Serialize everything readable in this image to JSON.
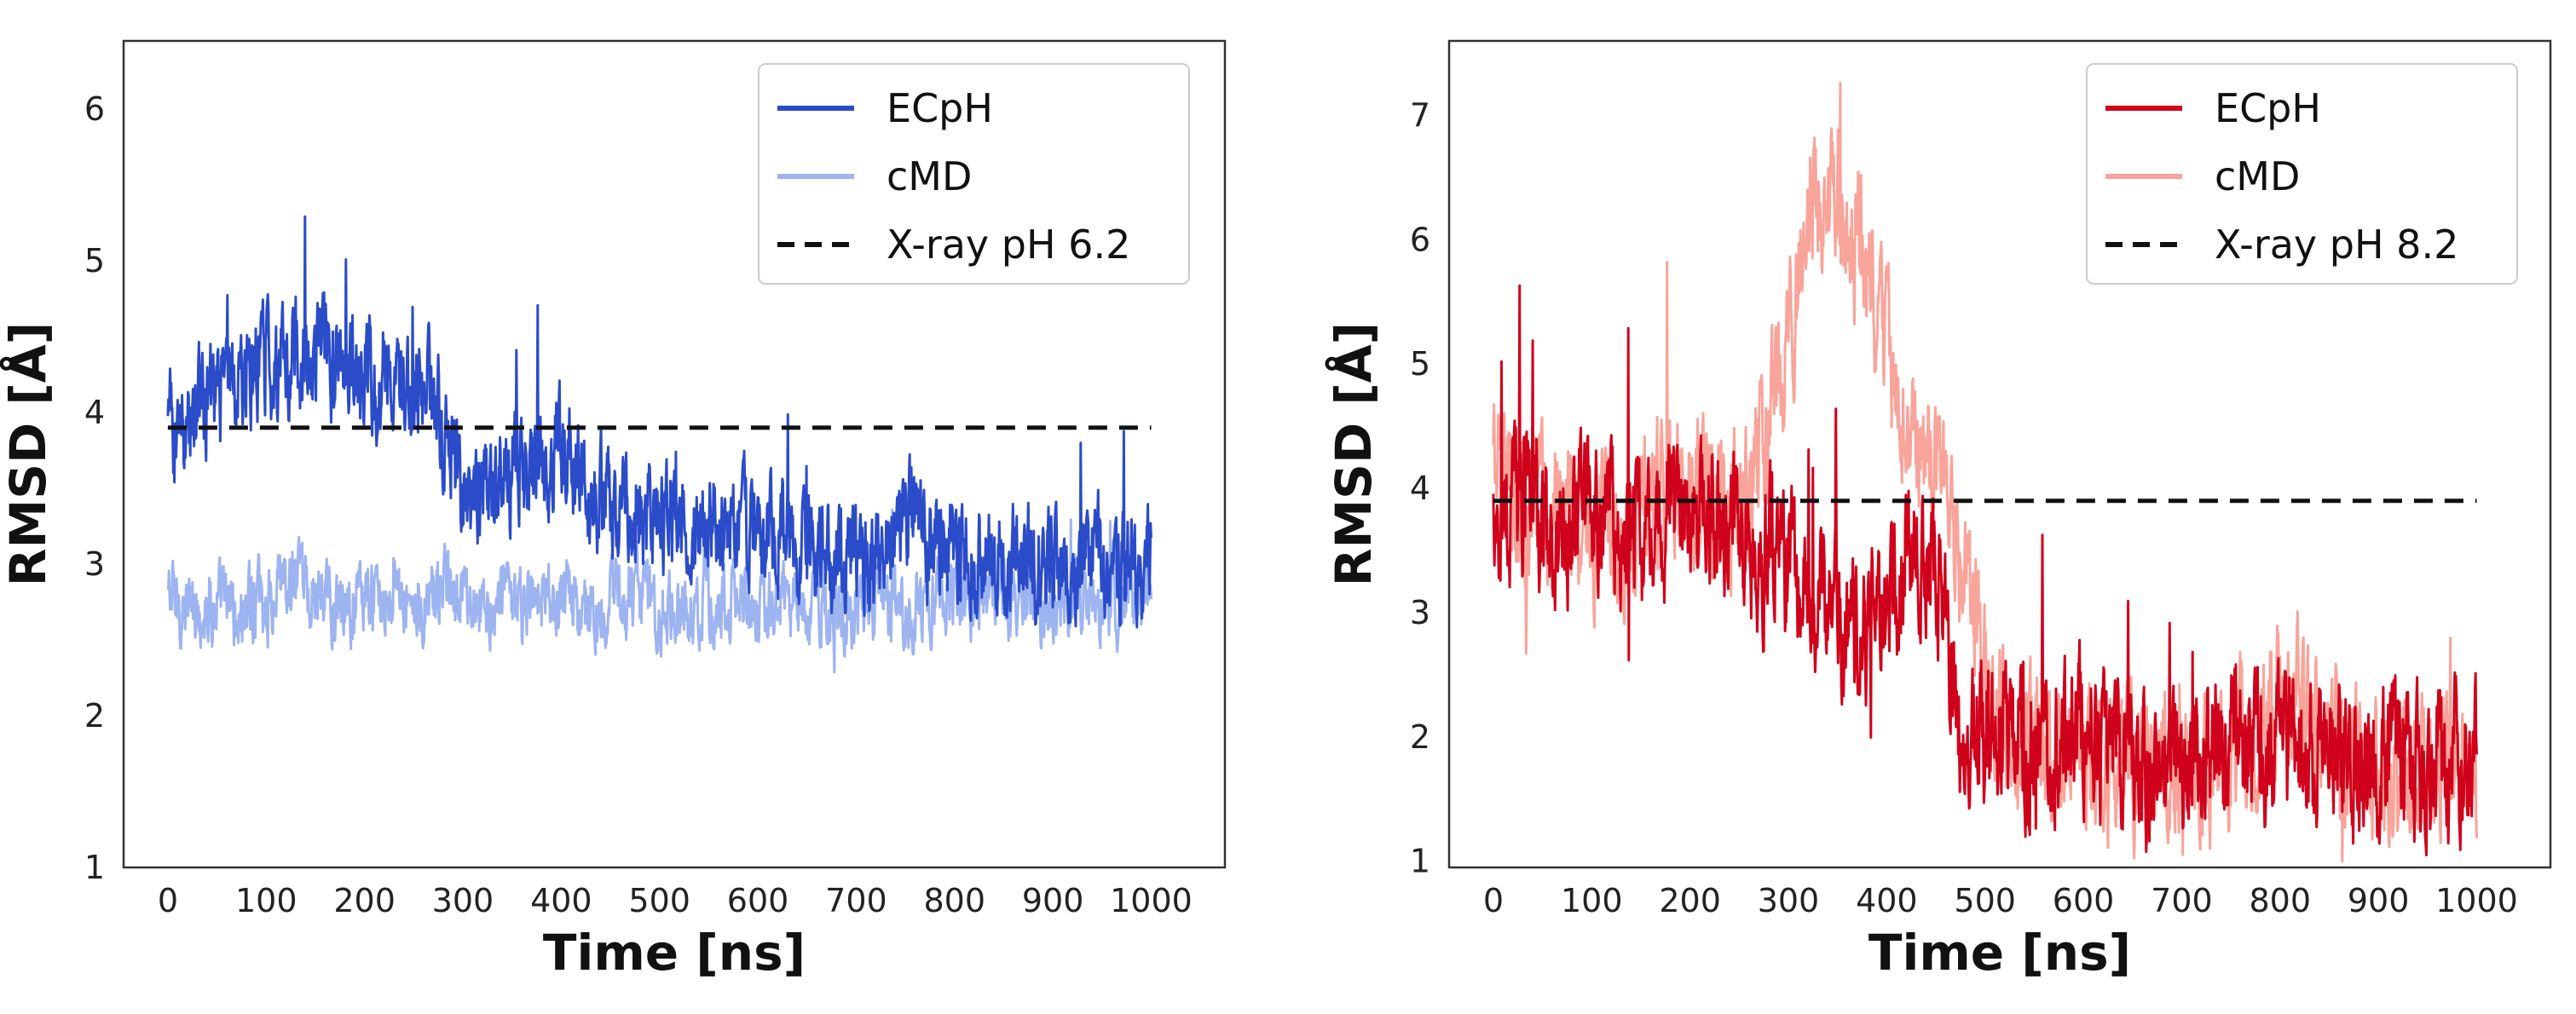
{
  "chart_data": [
    {
      "type": "line",
      "title": "",
      "xlabel": "Time [ns]",
      "ylabel": "RMSD [Å]",
      "xlim": [
        -45,
        1075
      ],
      "ylim": [
        1,
        6.45
      ],
      "xticks": [
        0,
        100,
        200,
        300,
        400,
        500,
        600,
        700,
        800,
        900,
        1000
      ],
      "yticks": [
        1,
        2,
        3,
        4,
        5,
        6
      ],
      "legend_position": "top-right",
      "grid": false,
      "series": [
        {
          "name": "cMD",
          "color": "#9db4f0",
          "style": "solid",
          "x": [
            0,
            25,
            50,
            75,
            100,
            125,
            150,
            175,
            200,
            225,
            250,
            275,
            300,
            325,
            350,
            375,
            400,
            425,
            450,
            475,
            500,
            525,
            550,
            575,
            600,
            625,
            650,
            675,
            700,
            725,
            750,
            775,
            800,
            825,
            850,
            875,
            900,
            925,
            950,
            975,
            1000
          ],
          "values": [
            2.8,
            2.7,
            2.75,
            2.65,
            2.75,
            2.85,
            2.8,
            2.7,
            2.75,
            2.85,
            2.8,
            2.75,
            2.8,
            2.75,
            2.7,
            2.75,
            2.8,
            2.7,
            2.75,
            2.8,
            2.7,
            2.75,
            2.7,
            2.75,
            2.7,
            2.75,
            2.7,
            2.65,
            2.7,
            2.75,
            2.7,
            2.8,
            2.75,
            2.8,
            2.75,
            2.8,
            2.75,
            2.8,
            2.75,
            2.8,
            2.75
          ],
          "noise": 0.2
        },
        {
          "name": "ECpH",
          "color": "#2b4cc9",
          "style": "solid",
          "x": [
            0,
            25,
            50,
            75,
            100,
            125,
            150,
            175,
            200,
            225,
            250,
            275,
            300,
            325,
            350,
            375,
            400,
            425,
            450,
            475,
            500,
            525,
            550,
            575,
            600,
            625,
            650,
            675,
            700,
            725,
            750,
            775,
            800,
            825,
            850,
            875,
            900,
            925,
            950,
            975,
            1000
          ],
          "values": [
            3.9,
            3.95,
            4.1,
            4.2,
            4.3,
            4.4,
            4.45,
            4.3,
            4.25,
            4.2,
            4.15,
            4.05,
            3.4,
            3.5,
            3.6,
            3.7,
            3.8,
            3.5,
            3.4,
            3.35,
            3.3,
            3.25,
            3.2,
            3.25,
            3.2,
            3.15,
            3.1,
            3.05,
            3.0,
            3.1,
            3.3,
            3.2,
            3.1,
            3.05,
            3.0,
            3.05,
            3.0,
            3.0,
            3.05,
            3.0,
            3.05
          ],
          "noise": 0.28
        },
        {
          "name": "X-ray pH 6.2",
          "color": "#111111",
          "style": "dashed",
          "x": [
            0,
            1000
          ],
          "values": [
            3.9,
            3.9
          ]
        }
      ],
      "legend": [
        "ECpH",
        "cMD",
        "X-ray pH 6.2"
      ]
    },
    {
      "type": "line",
      "title": "",
      "xlabel": "Time [ns]",
      "ylabel": "RMSD [Å]",
      "xlim": [
        -45,
        1075
      ],
      "ylim": [
        0.95,
        7.6
      ],
      "xticks": [
        0,
        100,
        200,
        300,
        400,
        500,
        600,
        700,
        800,
        900,
        1000
      ],
      "yticks": [
        1,
        2,
        3,
        4,
        5,
        6,
        7
      ],
      "legend_position": "top-right",
      "grid": false,
      "series": [
        {
          "name": "cMD",
          "color": "#f8a49a",
          "style": "solid",
          "x": [
            0,
            25,
            50,
            75,
            100,
            125,
            150,
            175,
            200,
            225,
            250,
            275,
            300,
            325,
            350,
            375,
            400,
            425,
            450,
            475,
            500,
            525,
            550,
            575,
            600,
            625,
            650,
            675,
            700,
            725,
            750,
            775,
            800,
            825,
            850,
            875,
            900,
            925,
            950,
            975,
            1000
          ],
          "values": [
            4.2,
            3.9,
            3.8,
            3.8,
            3.7,
            3.7,
            3.8,
            3.9,
            4.0,
            3.9,
            3.9,
            4.3,
            5.2,
            6.4,
            6.3,
            5.8,
            5.0,
            4.5,
            4.0,
            3.5,
            2.5,
            2.0,
            1.9,
            1.8,
            1.9,
            1.8,
            1.7,
            1.8,
            1.8,
            1.9,
            1.9,
            2.0,
            2.4,
            2.2,
            1.9,
            1.8,
            1.7,
            1.7,
            1.7,
            1.7,
            1.7
          ],
          "noise": 0.45
        },
        {
          "name": "ECpH",
          "color": "#d0021b",
          "style": "solid",
          "x": [
            0,
            25,
            50,
            75,
            100,
            125,
            150,
            175,
            200,
            225,
            250,
            275,
            300,
            325,
            350,
            375,
            400,
            425,
            450,
            475,
            500,
            525,
            550,
            575,
            600,
            625,
            650,
            675,
            700,
            725,
            750,
            775,
            800,
            825,
            850,
            875,
            900,
            925,
            950,
            975,
            1000
          ],
          "values": [
            3.8,
            3.9,
            3.7,
            3.6,
            3.8,
            3.7,
            3.6,
            3.8,
            3.7,
            3.8,
            3.6,
            3.5,
            3.4,
            3.2,
            3.0,
            2.8,
            3.0,
            3.6,
            3.4,
            2.2,
            2.0,
            2.0,
            1.9,
            1.9,
            2.1,
            1.8,
            1.7,
            1.8,
            1.7,
            1.8,
            1.9,
            2.0,
            1.9,
            1.8,
            1.9,
            1.7,
            1.8,
            1.8,
            1.7,
            1.8,
            1.8
          ],
          "noise": 0.45
        },
        {
          "name": "X-ray pH 8.2",
          "color": "#111111",
          "style": "dashed",
          "x": [
            0,
            1000
          ],
          "values": [
            3.9,
            3.9
          ]
        }
      ],
      "legend": [
        "ECpH",
        "cMD",
        "X-ray pH 8.2"
      ]
    }
  ]
}
